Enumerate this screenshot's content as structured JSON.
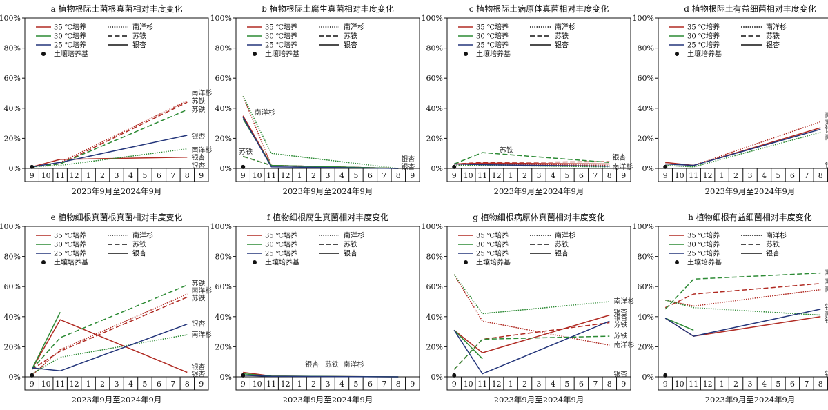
{
  "x_labels": [
    "9",
    "10",
    "11",
    "12",
    "1",
    "2",
    "3",
    "4",
    "5",
    "6",
    "7",
    "8",
    "9"
  ],
  "y_ticks": [
    "0%",
    "20%",
    "40%",
    "60%",
    "80%",
    "100%"
  ],
  "xlabel": "2023年9月至2024年9月",
  "legend": {
    "temps": [
      "35 ℃培养",
      "30 ℃培养",
      "25 ℃培养"
    ],
    "species": [
      "南洋杉",
      "苏铁",
      "银杏"
    ],
    "soil": "土壤培养基"
  },
  "colors": {
    "35": "#b02a22",
    "30": "#2c8a34",
    "25": "#23357a"
  },
  "chart_data": [
    {
      "type": "line",
      "id": "a",
      "title": "a  植物根际土菌根真菌相对丰度变化",
      "ylim": [
        0,
        100
      ],
      "soil_point": 1,
      "series": [
        {
          "temp": "35",
          "species": "南洋杉",
          "x": [
            0,
            2,
            11
          ],
          "values": [
            1,
            4,
            45
          ]
        },
        {
          "temp": "35",
          "species": "苏铁",
          "x": [
            0,
            2,
            11
          ],
          "values": [
            1,
            3,
            44
          ]
        },
        {
          "temp": "35",
          "species": "银杏",
          "x": [
            0,
            2,
            11
          ],
          "values": [
            1,
            6,
            7.5
          ]
        },
        {
          "temp": "30",
          "species": "南洋杉",
          "x": [
            0,
            2,
            11
          ],
          "values": [
            1,
            2,
            13
          ]
        },
        {
          "temp": "30",
          "species": "苏铁",
          "x": [
            0,
            2,
            11
          ],
          "values": [
            1,
            3,
            39
          ]
        },
        {
          "temp": "25",
          "species": "银杏",
          "x": [
            0,
            2,
            11
          ],
          "values": [
            1,
            4,
            22
          ]
        }
      ],
      "annotations": [
        {
          "text": "南洋杉",
          "x": 11.3,
          "y": 50
        },
        {
          "text": "苏铁",
          "x": 11.3,
          "y": 44.5
        },
        {
          "text": "苏铁",
          "x": 11.3,
          "y": 39
        },
        {
          "text": "银杏",
          "x": 11.3,
          "y": 21
        },
        {
          "text": "南洋杉",
          "x": 11.3,
          "y": 12
        },
        {
          "text": "银杏",
          "x": 11.3,
          "y": 7
        },
        {
          "text": "银杏",
          "x": 11.3,
          "y": 1.5
        }
      ]
    },
    {
      "type": "line",
      "id": "b",
      "title": "b  植物根际土腐生真菌相对丰度变化",
      "ylim": [
        0,
        100
      ],
      "soil_point": 1,
      "series": [
        {
          "temp": "35",
          "species": "南洋杉",
          "x": [
            0,
            2,
            11
          ],
          "values": [
            48,
            2,
            0
          ]
        },
        {
          "temp": "35",
          "species": "苏铁",
          "x": [
            0,
            2,
            11
          ],
          "values": [
            8,
            2,
            0
          ]
        },
        {
          "temp": "35",
          "species": "银杏",
          "x": [
            0,
            2,
            11
          ],
          "values": [
            35,
            2,
            0
          ]
        },
        {
          "temp": "30",
          "species": "南洋杉",
          "x": [
            0,
            2,
            11
          ],
          "values": [
            48,
            10,
            0
          ]
        },
        {
          "temp": "30",
          "species": "苏铁",
          "x": [
            0,
            2,
            11
          ],
          "values": [
            8,
            2,
            0
          ]
        },
        {
          "temp": "30",
          "species": "银杏",
          "x": [
            0,
            2,
            11
          ],
          "values": [
            33,
            2,
            0
          ]
        },
        {
          "temp": "25",
          "species": "银杏",
          "x": [
            0,
            2,
            11
          ],
          "values": [
            34,
            1,
            0
          ]
        }
      ],
      "annotations": [
        {
          "text": "南洋杉",
          "x": 0.8,
          "y": 37
        },
        {
          "text": "苏铁",
          "x": -0.3,
          "y": 11
        },
        {
          "text": "银杏",
          "x": 11.2,
          "y": 6
        },
        {
          "text": "银杏",
          "x": 11.2,
          "y": 1
        }
      ]
    },
    {
      "type": "line",
      "id": "c",
      "title": "c  植物根际土病原体真菌相对丰度变化",
      "ylim": [
        0,
        100
      ],
      "soil_point": 1,
      "series": [
        {
          "temp": "35",
          "species": "南洋杉",
          "x": [
            0,
            2,
            11
          ],
          "values": [
            2,
            3,
            2
          ]
        },
        {
          "temp": "35",
          "species": "苏铁",
          "x": [
            0,
            2,
            11
          ],
          "values": [
            3,
            4,
            4.5
          ]
        },
        {
          "temp": "35",
          "species": "银杏",
          "x": [
            0,
            2,
            11
          ],
          "values": [
            3,
            3.5,
            3
          ]
        },
        {
          "temp": "30",
          "species": "南洋杉",
          "x": [
            0,
            2,
            11
          ],
          "values": [
            2,
            2,
            1
          ]
        },
        {
          "temp": "30",
          "species": "苏铁",
          "x": [
            0,
            2,
            11
          ],
          "values": [
            3,
            10.5,
            4
          ]
        },
        {
          "temp": "25",
          "species": "银杏",
          "x": [
            0,
            2,
            11
          ],
          "values": [
            3,
            2.5,
            1.5
          ]
        }
      ],
      "annotations": [
        {
          "text": "苏铁",
          "x": 3.2,
          "y": 12
        },
        {
          "text": "银杏",
          "x": 11.2,
          "y": 7
        },
        {
          "text": "南洋杉",
          "x": 11.2,
          "y": 1
        }
      ]
    },
    {
      "type": "line",
      "id": "d",
      "title": "d  植物根际土有益细菌相对丰度变化",
      "ylim": [
        0,
        100
      ],
      "soil_point": 1,
      "series": [
        {
          "temp": "35",
          "species": "南洋杉",
          "x": [
            0,
            2,
            11
          ],
          "values": [
            3,
            2,
            31
          ]
        },
        {
          "temp": "35",
          "species": "银杏",
          "x": [
            0,
            2,
            11
          ],
          "values": [
            4,
            2,
            27
          ]
        },
        {
          "temp": "30",
          "species": "南洋杉",
          "x": [
            0,
            2,
            11
          ],
          "values": [
            2,
            1,
            24
          ]
        },
        {
          "temp": "25",
          "species": "银杏",
          "x": [
            0,
            2,
            11
          ],
          "values": [
            3,
            2,
            26
          ]
        }
      ],
      "annotations": [
        {
          "text": "南洋杉",
          "x": 11.3,
          "y": 35
        },
        {
          "text": "苏铁",
          "x": 11.3,
          "y": 30
        },
        {
          "text": "银杏",
          "x": 11.3,
          "y": 25.5
        },
        {
          "text": "南洋杉",
          "x": 11.3,
          "y": 20.5
        },
        {
          "text": "银杏",
          "x": 11.3,
          "y": 1.5
        }
      ]
    },
    {
      "type": "line",
      "id": "e",
      "title": "e  植物细根真菌根真菌相对丰度变化",
      "ylim": [
        0,
        100
      ],
      "soil_point": 1,
      "series": [
        {
          "temp": "35",
          "species": "南洋杉",
          "x": [
            0,
            2,
            11
          ],
          "values": [
            1,
            18,
            55
          ]
        },
        {
          "temp": "35",
          "species": "苏铁",
          "x": [
            0,
            2,
            11
          ],
          "values": [
            5,
            17,
            53
          ]
        },
        {
          "temp": "35",
          "species": "银杏",
          "x": [
            0,
            2,
            11
          ],
          "values": [
            5,
            38,
            3
          ]
        },
        {
          "temp": "30",
          "species": "南洋杉",
          "x": [
            0,
            2,
            11
          ],
          "values": [
            2,
            13,
            28
          ]
        },
        {
          "temp": "30",
          "species": "苏铁",
          "x": [
            0,
            2,
            11
          ],
          "values": [
            5,
            26,
            61
          ]
        },
        {
          "temp": "30",
          "species": "银杏",
          "x": [
            0,
            2
          ],
          "values": [
            5,
            43
          ]
        },
        {
          "temp": "25",
          "species": "银杏",
          "x": [
            0,
            2,
            11
          ],
          "values": [
            6,
            4,
            35
          ]
        }
      ],
      "annotations": [
        {
          "text": "苏铁",
          "x": 11.3,
          "y": 62
        },
        {
          "text": "南洋杉",
          "x": 11.3,
          "y": 57
        },
        {
          "text": "苏铁",
          "x": 11.3,
          "y": 52
        },
        {
          "text": "银杏",
          "x": 11.3,
          "y": 35
        },
        {
          "text": "南洋杉",
          "x": 11.3,
          "y": 28
        },
        {
          "text": "银杏",
          "x": 11.3,
          "y": 6.5
        },
        {
          "text": "银杏",
          "x": 11.3,
          "y": 1.5
        }
      ]
    },
    {
      "type": "line",
      "id": "f",
      "title": "f  植物细根腐生真菌相对丰度变化",
      "ylim": [
        0,
        100
      ],
      "soil_point": 1,
      "series": [
        {
          "temp": "35",
          "species": "银杏",
          "x": [
            0,
            2,
            11
          ],
          "values": [
            3,
            0.5,
            0
          ]
        },
        {
          "temp": "30",
          "species": "银杏",
          "x": [
            0,
            2,
            11
          ],
          "values": [
            2,
            0.5,
            0
          ]
        },
        {
          "temp": "25",
          "species": "银杏",
          "x": [
            0,
            2,
            11
          ],
          "values": [
            1,
            0.3,
            0
          ]
        }
      ],
      "annotations": [
        {
          "text": "银杏",
          "x": 4.4,
          "y": 8
        },
        {
          "text": "苏铁",
          "x": 5.8,
          "y": 8
        },
        {
          "text": "南洋杉",
          "x": 7.1,
          "y": 8
        }
      ]
    },
    {
      "type": "line",
      "id": "g",
      "title": "g  植物细根病原体真菌相对丰度变化",
      "ylim": [
        0,
        100
      ],
      "soil_point": 1,
      "series": [
        {
          "temp": "35",
          "species": "南洋杉",
          "x": [
            0,
            2,
            11
          ],
          "values": [
            68,
            37,
            21
          ]
        },
        {
          "temp": "35",
          "species": "苏铁",
          "x": [
            0,
            2,
            11
          ],
          "values": [
            5,
            25,
            36
          ]
        },
        {
          "temp": "35",
          "species": "银杏",
          "x": [
            0,
            2,
            11
          ],
          "values": [
            31,
            16,
            41
          ]
        },
        {
          "temp": "30",
          "species": "南洋杉",
          "x": [
            0,
            2,
            11
          ],
          "values": [
            68,
            42,
            50
          ]
        },
        {
          "temp": "30",
          "species": "苏铁",
          "x": [
            0,
            2,
            11
          ],
          "values": [
            5,
            25,
            27
          ]
        },
        {
          "temp": "30",
          "species": "银杏",
          "x": [
            0,
            2
          ],
          "values": [
            31,
            12
          ]
        },
        {
          "temp": "25",
          "species": "银杏",
          "x": [
            0,
            2,
            11
          ],
          "values": [
            31,
            2,
            37
          ]
        }
      ],
      "annotations": [
        {
          "text": "南洋杉",
          "x": 11.3,
          "y": 50
        },
        {
          "text": "银杏",
          "x": 11.3,
          "y": 43
        },
        {
          "text": "银杏",
          "x": 11.3,
          "y": 39
        },
        {
          "text": "苏铁",
          "x": 11.3,
          "y": 34.5
        },
        {
          "text": "苏铁",
          "x": 11.3,
          "y": 27
        },
        {
          "text": "南洋杉",
          "x": 11.3,
          "y": 21
        },
        {
          "text": "银杏",
          "x": 11.3,
          "y": 1.5
        }
      ]
    },
    {
      "type": "line",
      "id": "h",
      "title": "h  植物细根有益细菌相对丰度变化",
      "ylim": [
        0,
        100
      ],
      "soil_point": 1,
      "series": [
        {
          "temp": "35",
          "species": "南洋杉",
          "x": [
            0,
            2,
            11
          ],
          "values": [
            51,
            47,
            58
          ]
        },
        {
          "temp": "35",
          "species": "苏铁",
          "x": [
            0,
            2,
            11
          ],
          "values": [
            46,
            55,
            62
          ]
        },
        {
          "temp": "35",
          "species": "银杏",
          "x": [
            0,
            2,
            11
          ],
          "values": [
            39,
            27,
            40
          ]
        },
        {
          "temp": "30",
          "species": "南洋杉",
          "x": [
            0,
            2,
            11
          ],
          "values": [
            51,
            46,
            41
          ]
        },
        {
          "temp": "30",
          "species": "苏铁",
          "x": [
            0,
            2,
            11
          ],
          "values": [
            45,
            65,
            69
          ]
        },
        {
          "temp": "30",
          "species": "银杏",
          "x": [
            0,
            2
          ],
          "values": [
            39,
            31
          ]
        },
        {
          "temp": "25",
          "species": "银杏",
          "x": [
            0,
            2,
            11
          ],
          "values": [
            39,
            27,
            45
          ]
        }
      ],
      "annotations": [
        {
          "text": "苏铁",
          "x": 11.3,
          "y": 69
        },
        {
          "text": "苏铁",
          "x": 11.3,
          "y": 63
        },
        {
          "text": "南洋杉",
          "x": 11.3,
          "y": 58
        },
        {
          "text": "银杏",
          "x": 11.3,
          "y": 46
        },
        {
          "text": "南洋杉",
          "x": 11.3,
          "y": 41.5
        },
        {
          "text": "银杏",
          "x": 11.3,
          "y": 37.5
        },
        {
          "text": "银杏",
          "x": 11.3,
          "y": 1.5
        }
      ]
    }
  ]
}
